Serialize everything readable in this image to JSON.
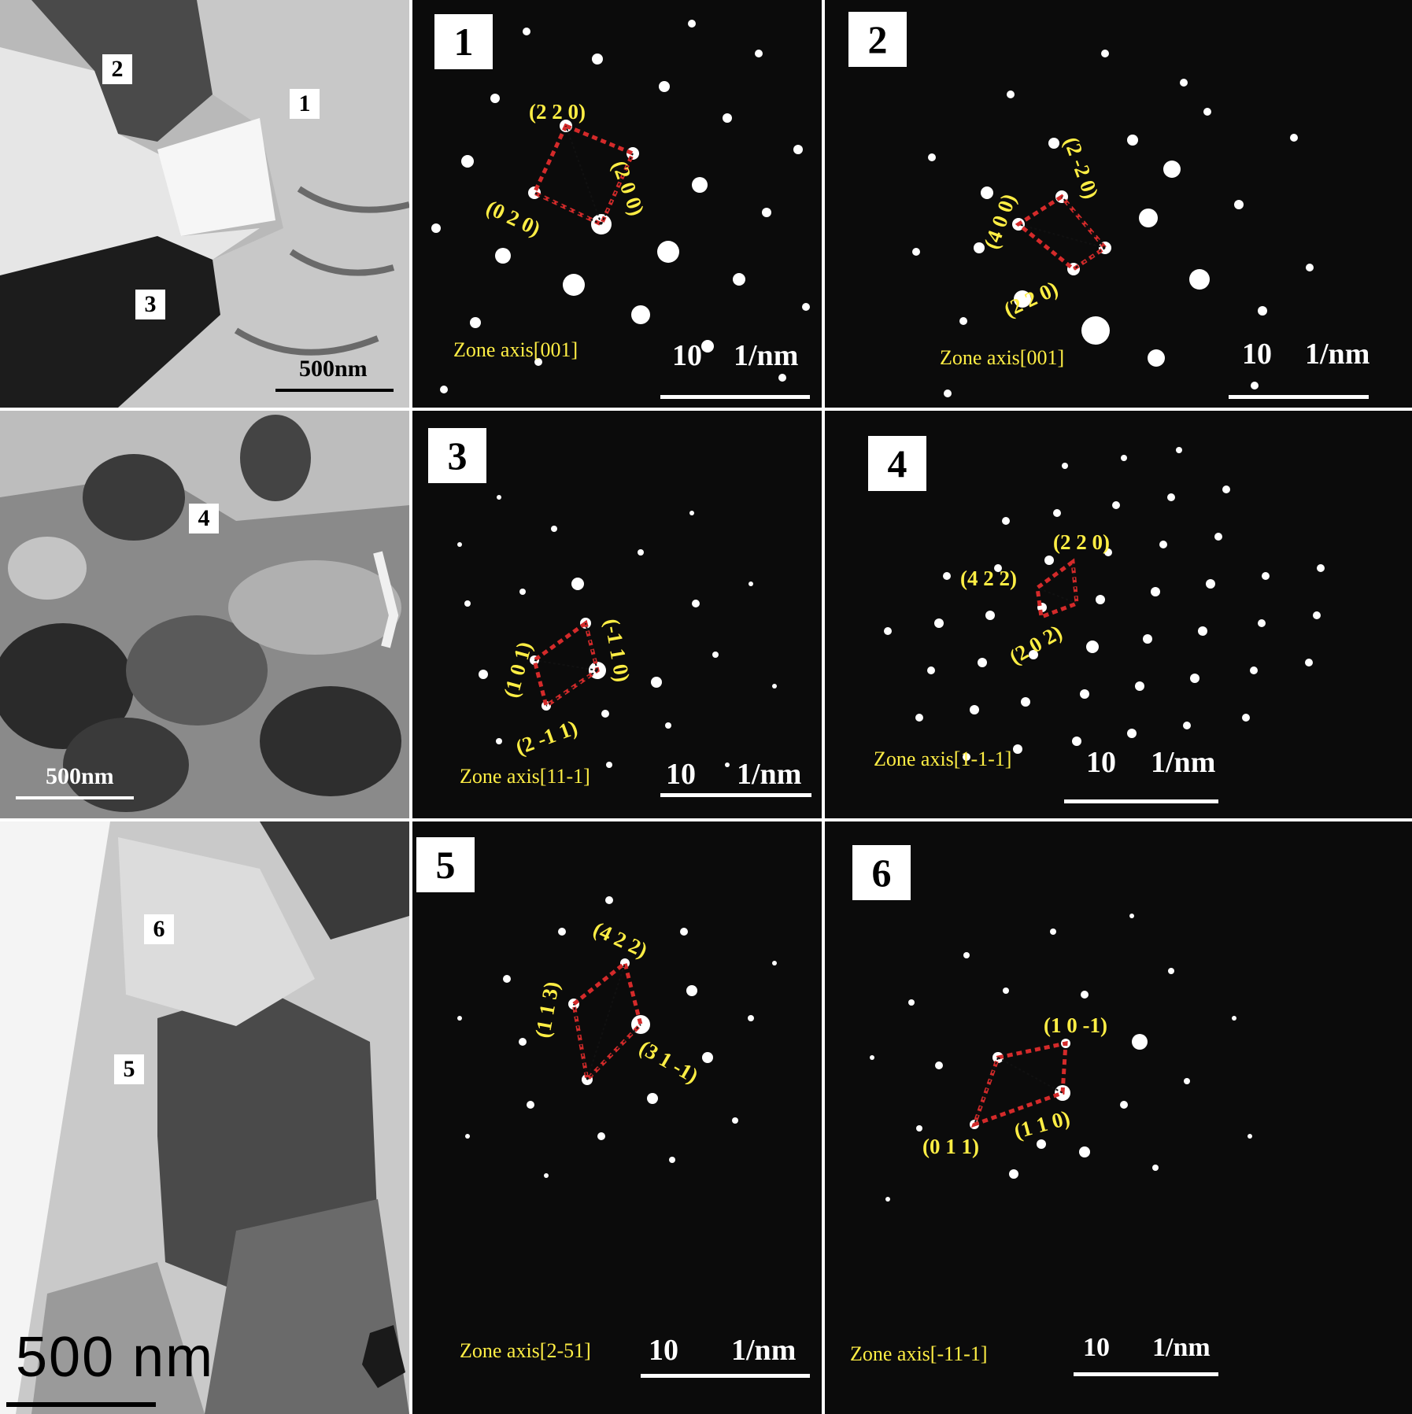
{
  "tem_panels": [
    {
      "region_labels": [
        "1",
        "2",
        "3"
      ],
      "scale_bar": "500nm"
    },
    {
      "region_labels": [
        "4"
      ],
      "scale_bar": "500nm"
    },
    {
      "region_labels": [
        "6",
        "5"
      ],
      "scale_bar": "500 nm"
    }
  ],
  "saed_panels": [
    {
      "number": "1",
      "spots": [
        "(2 2 0)",
        "(2 0 0)",
        "(0 2 0)"
      ],
      "zone_axis": "Zone axis[001]",
      "scale": "10",
      "unit": "1/nm"
    },
    {
      "number": "2",
      "spots": [
        "(2 -2 0)",
        "(4 0 0)",
        "(2 2 0)"
      ],
      "zone_axis": "Zone axis[001]",
      "scale": "10",
      "unit": "1/nm"
    },
    {
      "number": "3",
      "spots": [
        "(-1 1 0)",
        "(1 0 1)",
        "(2 -1 1)"
      ],
      "zone_axis": "Zone axis[11-1]",
      "scale": "10",
      "unit": "1/nm"
    },
    {
      "number": "4",
      "spots": [
        "(2 2 0)",
        "(4 2 2)",
        "(2 0 2)"
      ],
      "zone_axis": "Zone axis[1-1-1]",
      "scale": "10",
      "unit": "1/nm"
    },
    {
      "number": "5",
      "spots": [
        "(4 2 2)",
        "(1 1 3)",
        "(3 1 -1)"
      ],
      "zone_axis": "Zone axis[2-51]",
      "scale": "10",
      "unit": "1/nm"
    },
    {
      "number": "6",
      "spots": [
        "(1 0 -1)",
        "(0 1 1)",
        "(1 1 0)"
      ],
      "zone_axis": "Zone axis[-11-1]",
      "scale": "10",
      "unit": "1/nm"
    }
  ],
  "colors": {
    "label": "#ffee44",
    "arrow": "#d42a2a",
    "background": "#0b0b0b"
  }
}
